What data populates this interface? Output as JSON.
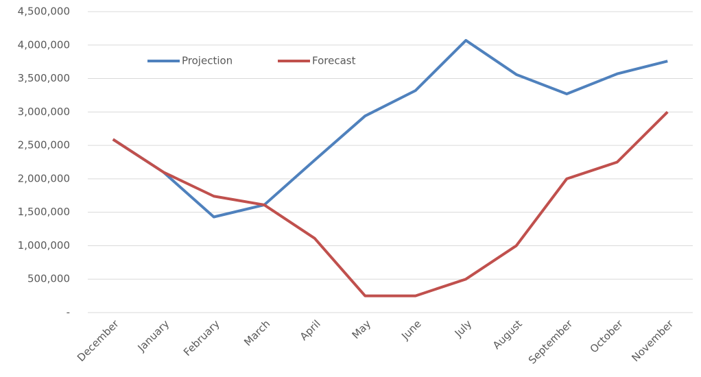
{
  "chart_data": {
    "type": "line",
    "categories": [
      "December",
      "January",
      "February",
      "March",
      "April",
      "May",
      "June",
      "July",
      "August",
      "September",
      "October",
      "November"
    ],
    "series": [
      {
        "name": "Projection",
        "color": "#4f81bd",
        "values": [
          2590000,
          2100000,
          1430000,
          1610000,
          2280000,
          2940000,
          3320000,
          4070000,
          3560000,
          3270000,
          3570000,
          3760000
        ]
      },
      {
        "name": "Forecast",
        "color": "#c0504d",
        "values": [
          2590000,
          2100000,
          1740000,
          1610000,
          1110000,
          250000,
          250000,
          500000,
          1000000,
          2000000,
          2250000,
          3000000
        ]
      }
    ],
    "ylim": [
      0,
      4500000
    ],
    "yticks": [
      {
        "value": 0,
        "label": "-"
      },
      {
        "value": 500000,
        "label": "500,000"
      },
      {
        "value": 1000000,
        "label": "1,000,000"
      },
      {
        "value": 1500000,
        "label": "1,500,000"
      },
      {
        "value": 2000000,
        "label": "2,000,000"
      },
      {
        "value": 2500000,
        "label": "2,500,000"
      },
      {
        "value": 3000000,
        "label": "3,000,000"
      },
      {
        "value": 3500000,
        "label": "3,500,000"
      },
      {
        "value": 4000000,
        "label": "4,000,000"
      },
      {
        "value": 4500000,
        "label": "4,500,000"
      }
    ],
    "grid": true,
    "legend": "top-left"
  }
}
